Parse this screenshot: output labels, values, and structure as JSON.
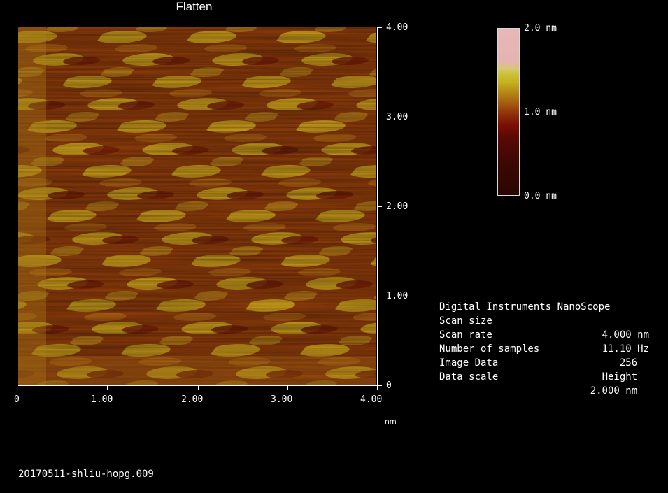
{
  "title": "Flatten",
  "image": {
    "description_icon": "afm-height-map",
    "x_ticks": [
      "0",
      "1.00",
      "2.00",
      "3.00",
      "4.00"
    ],
    "y_ticks": [
      "4.00",
      "3.00",
      "2.00",
      "1.00",
      "0"
    ],
    "x_unit": "nm"
  },
  "colorbar": {
    "top_label": "2.0 nm",
    "mid_label": "1.0 nm",
    "bottom_label": "0.0 nm"
  },
  "info": {
    "header": "Digital Instruments NanoScope",
    "rows": [
      {
        "key": "Scan size",
        "value": "4.000 nm"
      },
      {
        "key": "Scan rate",
        "value": "11.10 Hz"
      },
      {
        "key": "Number of samples",
        "value": "256  "
      },
      {
        "key": "Image Data",
        "value": "Height  "
      },
      {
        "key": "Data scale",
        "value": "2.000 nm  "
      }
    ]
  },
  "filename": "20170511-shliu-hopg.009",
  "colors": {
    "background": "#000000",
    "low": "#2a0602",
    "mid": "#b68a16",
    "high": "#e8b8b8"
  }
}
